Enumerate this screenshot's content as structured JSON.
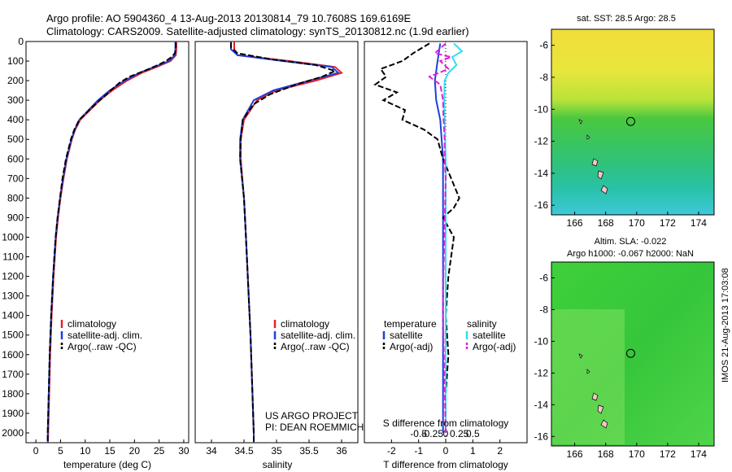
{
  "header": {
    "title_line1": "Argo profile: AO 5904360_4 13-Aug-2013 20130814_79 10.7608S 169.6169E",
    "title_line2": "Climatology: CARS2009. Satellite-adjusted climatology: synTS_20130812.nc (1.9d earlier)"
  },
  "colors": {
    "climatology": "#e8202a",
    "satellite": "#1f3fd8",
    "argo": "#000000",
    "sal_satellite": "#2ee0ee",
    "sal_argo": "#e020e0"
  },
  "chart_data": [
    {
      "id": "temperature",
      "type": "line",
      "xlabel": "temperature (deg C)",
      "ylabel": "",
      "xlim": [
        -2,
        31
      ],
      "ylim": [
        2050,
        0
      ],
      "xticks": [
        0,
        5,
        10,
        15,
        20,
        25,
        30
      ],
      "yticks": [
        0,
        100,
        200,
        300,
        400,
        500,
        600,
        700,
        800,
        900,
        1000,
        1100,
        1200,
        1300,
        1400,
        1500,
        1600,
        1700,
        1800,
        1900,
        2000
      ],
      "legend": [
        "climatology",
        "satellite-adj. clim.",
        "Argo(..raw -QC)"
      ],
      "series": [
        {
          "name": "climatology",
          "depth": [
            0,
            40,
            70,
            100,
            130,
            160,
            200,
            250,
            300,
            350,
            400,
            450,
            500,
            600,
            700,
            800,
            900,
            1000,
            1200,
            1400,
            1600,
            1800,
            2000,
            2050
          ],
          "values": [
            28.5,
            28.5,
            28.4,
            27.3,
            24.5,
            21.5,
            18.5,
            15.5,
            13.0,
            11.0,
            9.0,
            8.0,
            7.3,
            6.3,
            5.6,
            5.0,
            4.5,
            4.1,
            3.6,
            3.2,
            2.9,
            2.7,
            2.5,
            2.45
          ]
        },
        {
          "name": "satellite-adj. clim.",
          "depth": [
            0,
            40,
            70,
            100,
            130,
            160,
            200,
            250,
            300,
            350,
            400,
            450,
            500,
            600,
            700,
            800,
            900,
            1000,
            1200,
            1400,
            1600,
            1800,
            2000,
            2050
          ],
          "values": [
            28.3,
            28.3,
            28.2,
            27.0,
            24.0,
            21.0,
            18.0,
            15.0,
            12.6,
            10.7,
            8.8,
            7.9,
            7.2,
            6.2,
            5.5,
            4.9,
            4.4,
            4.0,
            3.5,
            3.1,
            2.8,
            2.6,
            2.4,
            2.4
          ]
        },
        {
          "name": "Argo(..raw -QC)",
          "depth": [
            5,
            40,
            60,
            80,
            100,
            120,
            150,
            180,
            210,
            250,
            300,
            350,
            400,
            450,
            500,
            600,
            700,
            800,
            900,
            1000,
            1200,
            1400,
            1600,
            1800,
            2000,
            2050
          ],
          "values": [
            28.4,
            28.4,
            28.2,
            27.5,
            26.4,
            24.8,
            22.0,
            19.0,
            17.0,
            15.2,
            13.0,
            10.8,
            8.8,
            7.8,
            7.1,
            6.1,
            5.4,
            4.9,
            4.4,
            4.0,
            3.5,
            3.1,
            2.8,
            2.6,
            2.4,
            2.4
          ]
        }
      ]
    },
    {
      "id": "salinity",
      "type": "line",
      "xlabel": "salinity",
      "xlim": [
        33.75,
        36.25
      ],
      "ylim": [
        2050,
        0
      ],
      "xticks": [
        34,
        34.5,
        35,
        35.5,
        36
      ],
      "legend": [
        "climatology",
        "satellite-adj. clim.",
        "Argo(..raw -QC)"
      ],
      "annotation": [
        "US ARGO PROJECT",
        "PI: DEAN ROEMMICH"
      ],
      "series": [
        {
          "name": "climatology",
          "depth": [
            0,
            40,
            70,
            100,
            130,
            160,
            200,
            250,
            300,
            400,
            500,
            600,
            800,
            1000,
            1500,
            2000,
            2050
          ],
          "values": [
            34.35,
            34.35,
            34.4,
            35.2,
            35.9,
            36.0,
            35.6,
            35.0,
            34.7,
            34.5,
            34.45,
            34.45,
            34.5,
            34.53,
            34.6,
            34.65,
            34.65
          ]
        },
        {
          "name": "satellite-adj. clim.",
          "depth": [
            0,
            40,
            70,
            100,
            130,
            160,
            200,
            250,
            300,
            400,
            500,
            600,
            800,
            1000,
            1500,
            2000,
            2050
          ],
          "values": [
            34.3,
            34.3,
            34.4,
            35.1,
            35.85,
            35.95,
            35.5,
            34.95,
            34.65,
            34.48,
            34.44,
            34.44,
            34.5,
            34.53,
            34.6,
            34.65,
            34.65
          ]
        },
        {
          "name": "Argo(..raw -QC)",
          "depth": [
            5,
            30,
            60,
            90,
            120,
            150,
            180,
            220,
            270,
            320,
            400,
            500,
            600,
            800,
            1000,
            1500,
            2000,
            2050
          ],
          "values": [
            34.3,
            34.3,
            34.4,
            34.9,
            35.6,
            35.9,
            35.7,
            35.3,
            34.9,
            34.65,
            34.48,
            34.45,
            34.44,
            34.5,
            34.53,
            34.6,
            34.65,
            34.65
          ]
        }
      ]
    },
    {
      "id": "difference",
      "type": "line",
      "xlabel": "T difference from climatology",
      "xlabel_top": "S difference from climatology",
      "xlim": [
        -3,
        3
      ],
      "ylim": [
        2050,
        0
      ],
      "xticks": [
        -2,
        -1,
        0,
        1,
        2
      ],
      "xtick_labels": [
        "-2",
        "-1",
        "0",
        "1",
        "2"
      ],
      "sticks": [
        -0.5,
        -0.25,
        0,
        0.25,
        0.5
      ],
      "stick_labels": [
        "-0.5",
        "-0.25",
        "0",
        "0.25",
        "0.5"
      ],
      "legend": [
        "temperature",
        "satellite",
        "Argo(-adj)",
        "salinity",
        "satellite",
        "Argo(-adj)"
      ],
      "series": [
        {
          "name": "T satellite",
          "depth": [
            10,
            100,
            200,
            300,
            400,
            600,
            800,
            1000,
            1500,
            2000
          ],
          "values": [
            -0.2,
            -0.3,
            -0.4,
            -0.35,
            -0.2,
            -0.1,
            -0.1,
            -0.1,
            -0.1,
            -0.1
          ]
        },
        {
          "name": "T Argo(-adj)",
          "depth": [
            10,
            60,
            100,
            140,
            180,
            220,
            260,
            300,
            350,
            400,
            450,
            500,
            550,
            600,
            700,
            800,
            850,
            900,
            1000,
            1200,
            1400,
            1600,
            1800,
            2000
          ],
          "values": [
            -0.6,
            -1.2,
            -1.6,
            -2.4,
            -2.2,
            -2.6,
            -1.8,
            -2.3,
            -1.5,
            -1.6,
            -0.8,
            -0.3,
            -0.2,
            -0.1,
            0.2,
            0.5,
            0.3,
            -0.1,
            0.3,
            0.1,
            0.0,
            0.1,
            0.0,
            0.0
          ]
        },
        {
          "name": "S satellite",
          "depth": [
            10,
            50,
            80,
            120,
            160,
            200,
            300,
            400,
            600,
            1000,
            1500,
            2000
          ],
          "values": [
            0.15,
            0.3,
            0.12,
            0.2,
            0.05,
            -0.02,
            -0.03,
            -0.02,
            0.0,
            0.0,
            0.0,
            0.0
          ]
        },
        {
          "name": "S Argo(-adj)",
          "depth": [
            10,
            60,
            80,
            100,
            140,
            180,
            220,
            300,
            400,
            500,
            600,
            700,
            1300,
            1400,
            2000
          ],
          "values": [
            0.0,
            -0.2,
            0.1,
            -0.1,
            0.05,
            -0.3,
            -0.1,
            -0.05,
            -0.04,
            -0.02,
            -0.02,
            0.0,
            -0.05,
            -0.05,
            0.0
          ]
        }
      ]
    },
    {
      "id": "sst-map",
      "type": "heatmap",
      "title": "sat. SST: 28.5 Argo: 28.5",
      "xlim": [
        164.5,
        175
      ],
      "ylim": [
        -16.6,
        -5
      ],
      "xticks": [
        166,
        168,
        170,
        172,
        174
      ],
      "yticks": [
        -6,
        -8,
        -10,
        -12,
        -14,
        -16
      ],
      "marker": {
        "lon": 169.6169,
        "lat": -10.7608
      }
    },
    {
      "id": "sla-map",
      "type": "heatmap",
      "title": "Altim. SLA: -0.022",
      "subtitle": "Argo h1000: -0.067 h2000: NaN",
      "xlim": [
        164.5,
        175
      ],
      "ylim": [
        -16.6,
        -5
      ],
      "xticks": [
        166,
        168,
        170,
        172,
        174
      ],
      "yticks": [
        -6,
        -8,
        -10,
        -12,
        -14,
        -16
      ],
      "marker": {
        "lon": 169.6169,
        "lat": -10.7608
      }
    }
  ],
  "footer": {
    "side_label": "IMOS 21-Aug-2013 17:03:08"
  }
}
